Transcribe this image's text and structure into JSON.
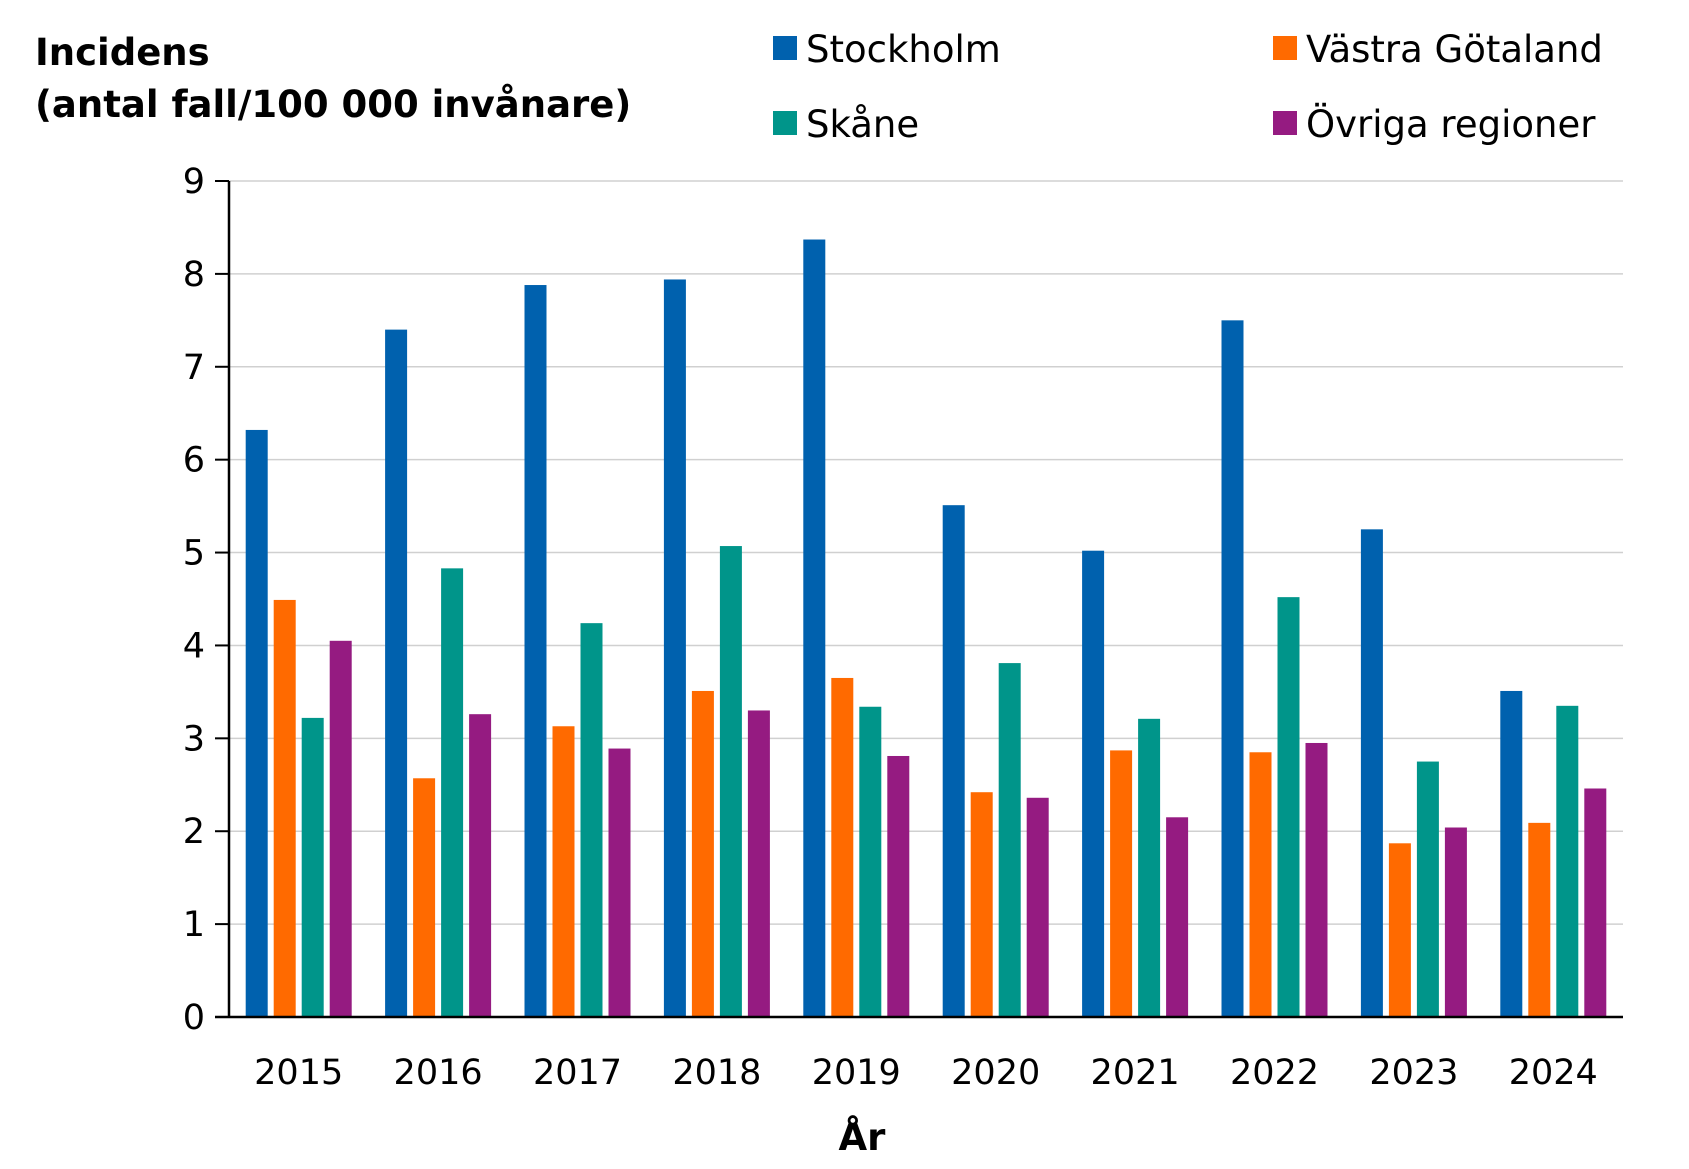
{
  "chart_data": {
    "type": "bar",
    "ylabel_lines": [
      "Incidens",
      "(antal fall/100 000 invånare)"
    ],
    "xlabel": "År",
    "categories": [
      "2015",
      "2016",
      "2017",
      "2018",
      "2019",
      "2020",
      "2021",
      "2022",
      "2023",
      "2024"
    ],
    "ylim": [
      0,
      9
    ],
    "yticks": [
      "0",
      "1",
      "2",
      "3",
      "4",
      "5",
      "6",
      "7",
      "8",
      "9"
    ],
    "grid": true,
    "legend_position": "top",
    "series": [
      {
        "name": "Stockholm",
        "color": "#0061AE",
        "values": [
          6.32,
          7.4,
          7.88,
          7.94,
          8.37,
          5.51,
          5.02,
          7.5,
          5.25,
          3.51
        ]
      },
      {
        "name": "Västra Götaland",
        "color": "#FF6A00",
        "values": [
          4.49,
          2.57,
          3.13,
          3.51,
          3.65,
          2.42,
          2.87,
          2.85,
          1.87,
          2.09
        ]
      },
      {
        "name": "Skåne",
        "color": "#00958A",
        "values": [
          3.22,
          4.83,
          4.24,
          5.07,
          3.34,
          3.81,
          3.21,
          4.52,
          2.75,
          3.35
        ]
      },
      {
        "name": "Övriga regioner",
        "color": "#951B81",
        "values": [
          4.05,
          3.26,
          2.89,
          3.3,
          2.81,
          2.36,
          2.15,
          2.95,
          2.04,
          2.46
        ]
      }
    ]
  }
}
